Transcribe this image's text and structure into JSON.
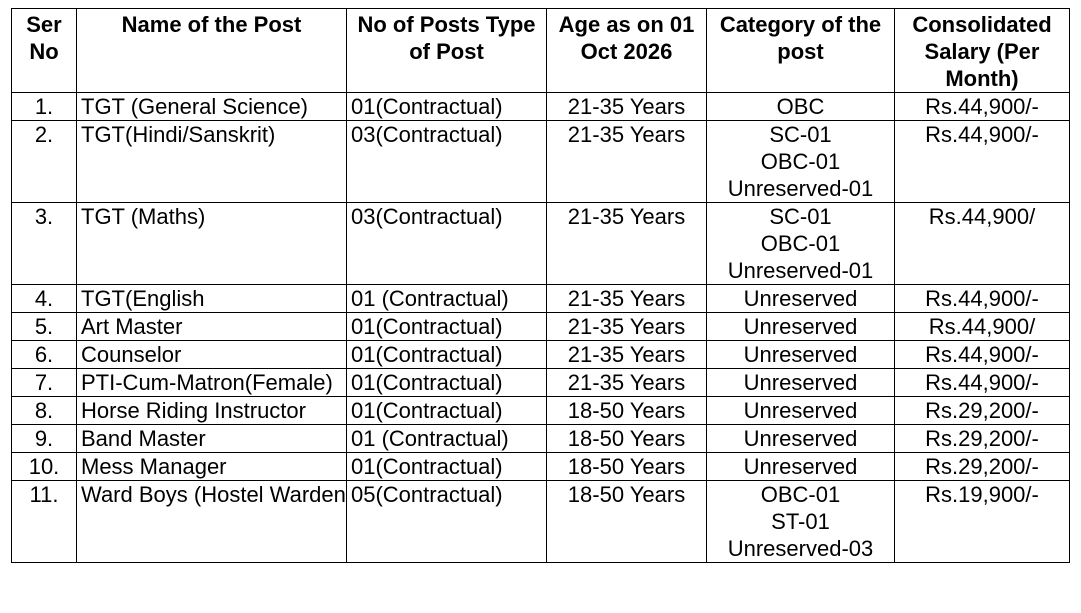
{
  "headers": [
    "Ser No",
    "Name of the Post",
    "No of Posts Type of Post",
    "Age as on 01 Oct 2026",
    "Category of the post",
    "Consolidated Salary (Per Month)"
  ],
  "rows": [
    {
      "ser": "1.",
      "name": "TGT (General Science)",
      "posts": "01(Contractual)",
      "age": "21-35 Years",
      "category": [
        "OBC"
      ],
      "salary": "Rs.44,900/-"
    },
    {
      "ser": "2.",
      "name": "TGT(Hindi/Sanskrit)",
      "posts": "03(Contractual)",
      "age": "21-35 Years",
      "category": [
        "SC-01",
        "OBC-01",
        "Unreserved-01"
      ],
      "salary": "Rs.44,900/-"
    },
    {
      "ser": "3.",
      "name": "TGT (Maths)",
      "posts": "03(Contractual)",
      "age": "21-35 Years",
      "category": [
        "SC-01",
        "OBC-01",
        "Unreserved-01"
      ],
      "salary": "Rs.44,900/"
    },
    {
      "ser": "4.",
      "name": "TGT(English",
      "posts": "01 (Contractual)",
      "age": "21-35 Years",
      "category": [
        "Unreserved"
      ],
      "salary": "Rs.44,900/-"
    },
    {
      "ser": "5.",
      "name": "Art Master",
      "posts": "01(Contractual)",
      "age": "21-35 Years",
      "category": [
        "Unreserved"
      ],
      "salary": "Rs.44,900/"
    },
    {
      "ser": "6.",
      "name": "Counselor",
      "posts": "01(Contractual)",
      "age": "21-35 Years",
      "category": [
        "Unreserved"
      ],
      "salary": "Rs.44,900/-"
    },
    {
      "ser": "7.",
      "name": "PTI-Cum-Matron(Female)",
      "posts": "01(Contractual)",
      "age": "21-35 Years",
      "category": [
        "Unreserved"
      ],
      "salary": "Rs.44,900/-"
    },
    {
      "ser": "8.",
      "name": "Horse Riding Instructor",
      "posts": "01(Contractual)",
      "age": "18-50 Years",
      "category": [
        "Unreserved"
      ],
      "salary": "Rs.29,200/-"
    },
    {
      "ser": "9.",
      "name": "Band Master",
      "posts": "01 (Contractual)",
      "age": "18-50 Years",
      "category": [
        "Unreserved"
      ],
      "salary": "Rs.29,200/-"
    },
    {
      "ser": "10.",
      "name": "Mess Manager",
      "posts": "01(Contractual)",
      "age": "18-50 Years",
      "category": [
        "Unreserved"
      ],
      "salary": "Rs.29,200/-"
    },
    {
      "ser": "11.",
      "name": "Ward Boys (Hostel Warden)",
      "posts": "05(Contractual)",
      "age": "18-50 Years",
      "category": [
        "OBC-01",
        "ST-01",
        "Unreserved-03"
      ],
      "salary": "Rs.19,900/-"
    }
  ]
}
